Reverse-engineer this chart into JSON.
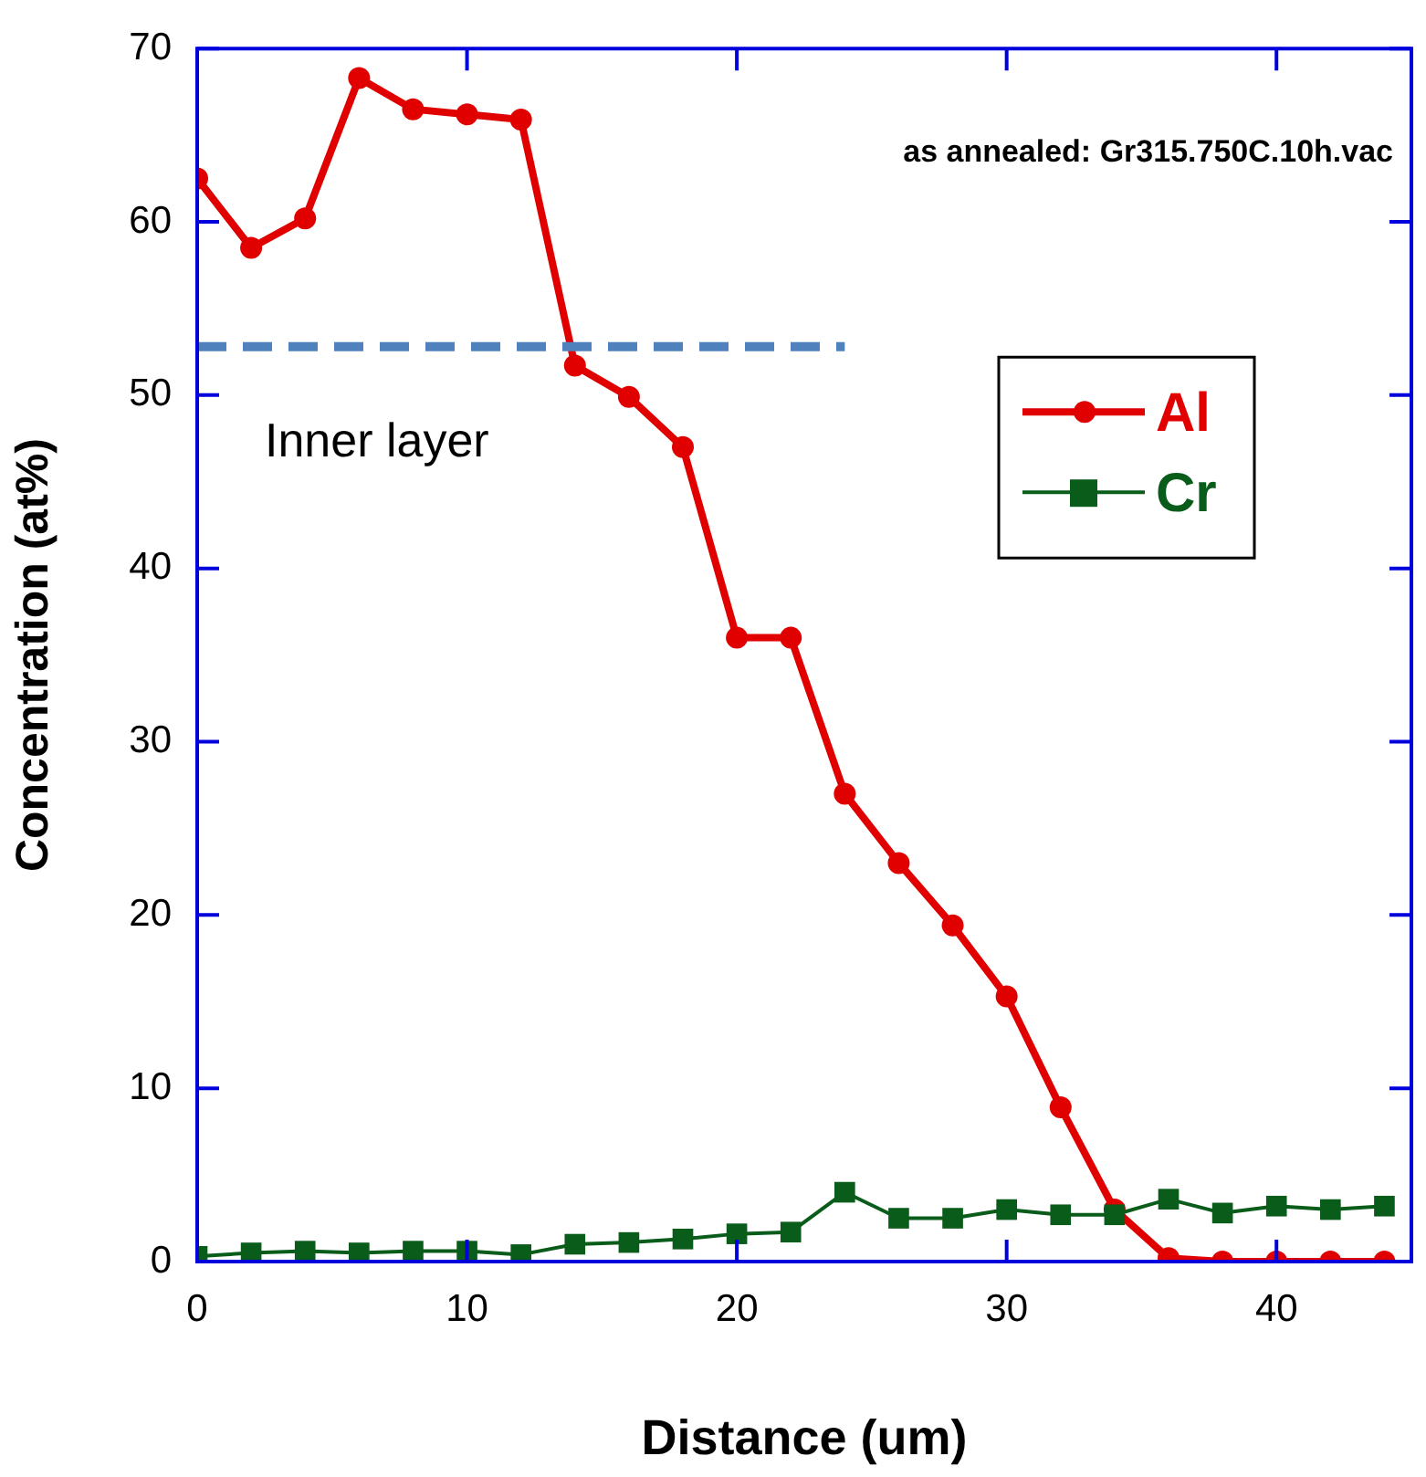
{
  "chart_data": {
    "type": "line",
    "xlabel": "Distance (um)",
    "ylabel": "Concentration (at%)",
    "x": [
      0,
      2,
      4,
      6,
      8,
      10,
      12,
      14,
      16,
      18,
      20,
      22,
      24,
      26,
      28,
      30,
      32,
      34,
      36,
      38,
      40,
      42,
      44
    ],
    "series": [
      {
        "name": "Al",
        "color": "#e00000",
        "marker": "circle",
        "values": [
          62.5,
          58.5,
          60.2,
          68.3,
          66.5,
          66.2,
          65.9,
          51.7,
          49.9,
          47.0,
          36.0,
          36.0,
          27.0,
          23.0,
          19.4,
          15.3,
          8.9,
          3.0,
          0.2,
          0,
          0,
          0,
          0
        ]
      },
      {
        "name": "Cr",
        "color": "#0a5c1a",
        "marker": "square",
        "values": [
          0.3,
          0.5,
          0.6,
          0.5,
          0.6,
          0.6,
          0.4,
          1.0,
          1.1,
          1.3,
          1.6,
          1.7,
          4.0,
          2.5,
          2.5,
          3.0,
          2.7,
          2.7,
          3.6,
          2.8,
          3.2,
          3.0,
          3.2
        ]
      },
      {
        "color": "#4f81bd",
        "marker": "none",
        "line_style": "dashed",
        "x": [
          0,
          24
        ],
        "values": [
          52.8,
          52.8
        ]
      }
    ],
    "xlim": [
      0,
      45
    ],
    "xticks": [
      0,
      10,
      20,
      30,
      40
    ],
    "ylim": [
      0,
      70
    ],
    "yticks": [
      0,
      10,
      20,
      30,
      40,
      50,
      60,
      70
    ],
    "grid": false,
    "legend": "top right",
    "annotations": [
      "as annealed: Gr315.750C.10h.vac",
      "Inner layer"
    ]
  }
}
